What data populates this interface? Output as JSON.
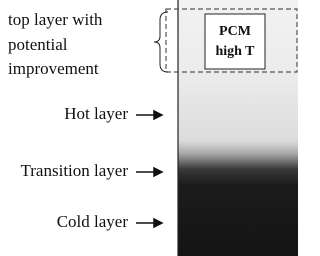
{
  "top_layer": {
    "lines": [
      "top layer with",
      "potential",
      "improvement"
    ]
  },
  "pcm_box": {
    "lines": [
      "PCM",
      "high T"
    ]
  },
  "layers": [
    "Hot layer",
    "Transition layer",
    "Cold layer"
  ]
}
